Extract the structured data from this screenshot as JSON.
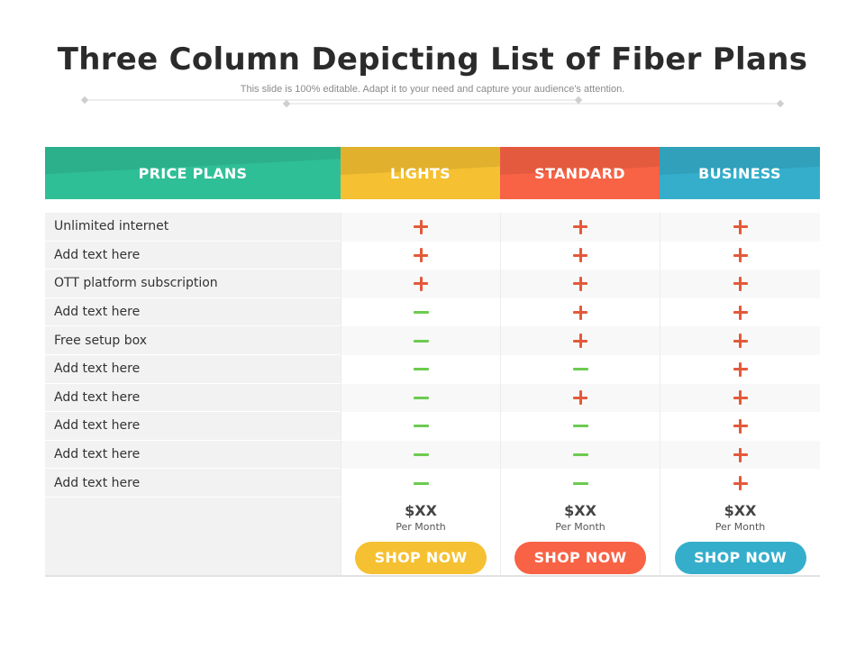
{
  "title": "Three Column Depicting List of Fiber Plans",
  "subtitle": "This slide is 100% editable. Adapt it to your need and capture your audience's attention.",
  "colors": {
    "green": "#2fbf97",
    "yellow": "#f5c031",
    "red": "#f86245",
    "blue": "#35aecb",
    "plus": "#e35a3a",
    "minus": "#6ccb4f"
  },
  "headers": [
    "PRICE PLANS",
    "LIGHTS",
    "STANDARD",
    "BUSINESS"
  ],
  "rows": [
    {
      "label": "Unlimited internet",
      "values": [
        "plus",
        "plus",
        "plus"
      ]
    },
    {
      "label": "Add text here",
      "values": [
        "plus",
        "plus",
        "plus"
      ]
    },
    {
      "label": "OTT platform subscription",
      "values": [
        "plus",
        "plus",
        "plus"
      ]
    },
    {
      "label": "Add text here",
      "values": [
        "minus",
        "plus",
        "plus"
      ]
    },
    {
      "label": "Free setup box",
      "values": [
        "minus",
        "plus",
        "plus"
      ]
    },
    {
      "label": "Add text here",
      "values": [
        "minus",
        "minus",
        "plus"
      ]
    },
    {
      "label": "Add text here",
      "values": [
        "minus",
        "plus",
        "plus"
      ]
    },
    {
      "label": "Add text here",
      "values": [
        "minus",
        "minus",
        "plus"
      ]
    },
    {
      "label": "Add text here",
      "values": [
        "minus",
        "minus",
        "plus"
      ]
    },
    {
      "label": "Add text here",
      "values": [
        "minus",
        "minus",
        "plus"
      ]
    }
  ],
  "plans": [
    {
      "price": "$XX",
      "period": "Per Month",
      "button": "SHOP NOW"
    },
    {
      "price": "$XX",
      "period": "Per Month",
      "button": "SHOP NOW"
    },
    {
      "price": "$XX",
      "period": "Per Month",
      "button": "SHOP NOW"
    }
  ]
}
